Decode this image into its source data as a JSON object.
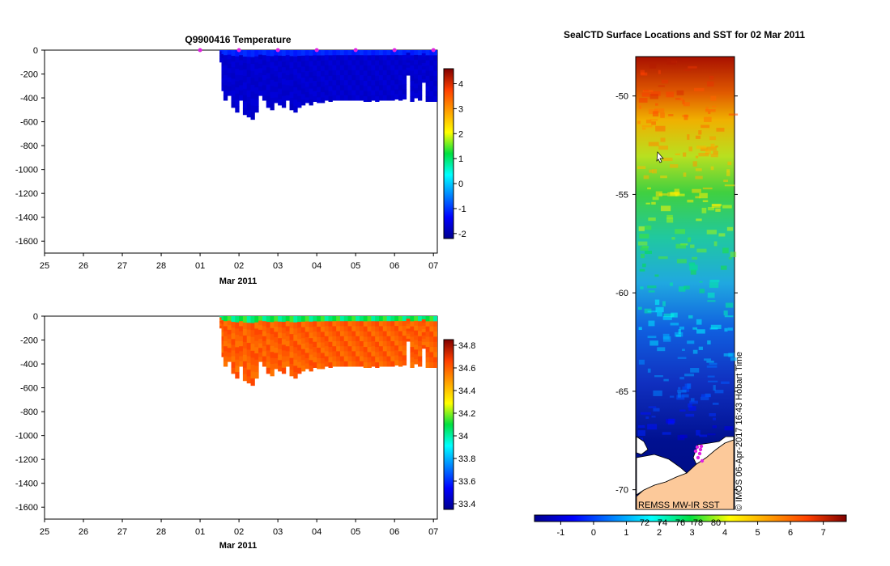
{
  "chart_data": [
    {
      "type": "heatmap",
      "title": "Q9900416  Temperature",
      "xlabel": "Mar 2011",
      "ylabel": "",
      "x_tick_labels": [
        "25",
        "26",
        "27",
        "28",
        "01",
        "02",
        "03",
        "04",
        "05",
        "06",
        "07"
      ],
      "x_tick_days": [
        -4,
        -3,
        -2,
        -1,
        0,
        1,
        2,
        3,
        4,
        5,
        6
      ],
      "xlim": [
        -4,
        6.1
      ],
      "ylim": [
        -1700,
        0
      ],
      "y_ticks": [
        0,
        -200,
        -400,
        -600,
        -800,
        -1000,
        -1200,
        -1400,
        -1600
      ],
      "colorbar": {
        "min": -2.2,
        "max": 4.6,
        "ticks": [
          4,
          3,
          2,
          1,
          0,
          -1,
          -2
        ]
      },
      "profile_days": [
        0.5,
        0.55,
        0.6,
        0.7,
        0.8,
        0.9,
        1.0,
        1.1,
        1.2,
        1.3,
        1.4,
        1.5,
        1.6,
        1.7,
        1.8,
        1.9,
        2.0,
        2.1,
        2.2,
        2.3,
        2.4,
        2.5,
        2.6,
        2.7,
        2.8,
        2.9,
        3.0,
        3.1,
        3.2,
        3.3,
        3.4,
        3.5,
        3.6,
        3.7,
        3.8,
        3.9,
        4.0,
        4.1,
        4.2,
        4.3,
        4.4,
        4.5,
        4.6,
        4.7,
        4.8,
        4.9,
        5.0,
        5.1,
        5.2,
        5.3,
        5.4,
        5.5,
        5.6,
        5.7,
        5.8,
        5.9,
        6.0
      ],
      "profile_max_depth": [
        100,
        340,
        420,
        380,
        480,
        520,
        420,
        540,
        560,
        580,
        520,
        380,
        420,
        480,
        500,
        440,
        460,
        480,
        420,
        500,
        520,
        480,
        460,
        440,
        460,
        430,
        440,
        440,
        420,
        430,
        420,
        420,
        420,
        420,
        420,
        420,
        420,
        420,
        430,
        430,
        420,
        430,
        420,
        420,
        420,
        420,
        410,
        420,
        410,
        210,
        430,
        400,
        420,
        270,
        430,
        430,
        430
      ],
      "surface_marker_days": [
        0,
        1,
        2,
        3,
        4,
        5,
        6
      ],
      "value_range_shown": [
        -2,
        1
      ]
    },
    {
      "type": "heatmap",
      "title": "",
      "xlabel": "Mar 2011",
      "ylabel": "",
      "x_tick_labels": [
        "25",
        "26",
        "27",
        "28",
        "01",
        "02",
        "03",
        "04",
        "05",
        "06",
        "07"
      ],
      "x_tick_days": [
        -4,
        -3,
        -2,
        -1,
        0,
        1,
        2,
        3,
        4,
        5,
        6
      ],
      "xlim": [
        -4,
        6.1
      ],
      "ylim": [
        -1700,
        0
      ],
      "y_ticks": [
        0,
        -200,
        -400,
        -600,
        -800,
        -1000,
        -1200,
        -1400,
        -1600
      ],
      "colorbar": {
        "min": 33.35,
        "max": 34.85,
        "ticks": [
          34.8,
          34.6,
          34.4,
          34.2,
          34,
          33.8,
          33.6,
          33.4
        ]
      },
      "surface_value": 34.0,
      "deep_value": 34.65
    },
    {
      "type": "heatmap",
      "title": "SealCTD Surface Locations and SST for 02 Mar 2011",
      "xlabel": "",
      "ylabel": "",
      "ylim": [
        -71,
        -48
      ],
      "y_ticks": [
        -50,
        -55,
        -60,
        -65,
        -70
      ],
      "colorbar": {
        "min": -1.8,
        "max": 7.7,
        "ticks": [
          -1,
          0,
          1,
          2,
          3,
          4,
          5,
          6,
          7
        ]
      },
      "colorbar_overlap_labels": [
        "72",
        "74",
        "76",
        "78",
        "80"
      ],
      "source_note": "REMSS MW-IR SST",
      "credit": "© IMOS 06-Apr-2017 16:43 Hobart Time"
    }
  ],
  "colors": {
    "land": "#fcc99a",
    "profile_marker": "#e020e0",
    "axis": "#000000"
  }
}
